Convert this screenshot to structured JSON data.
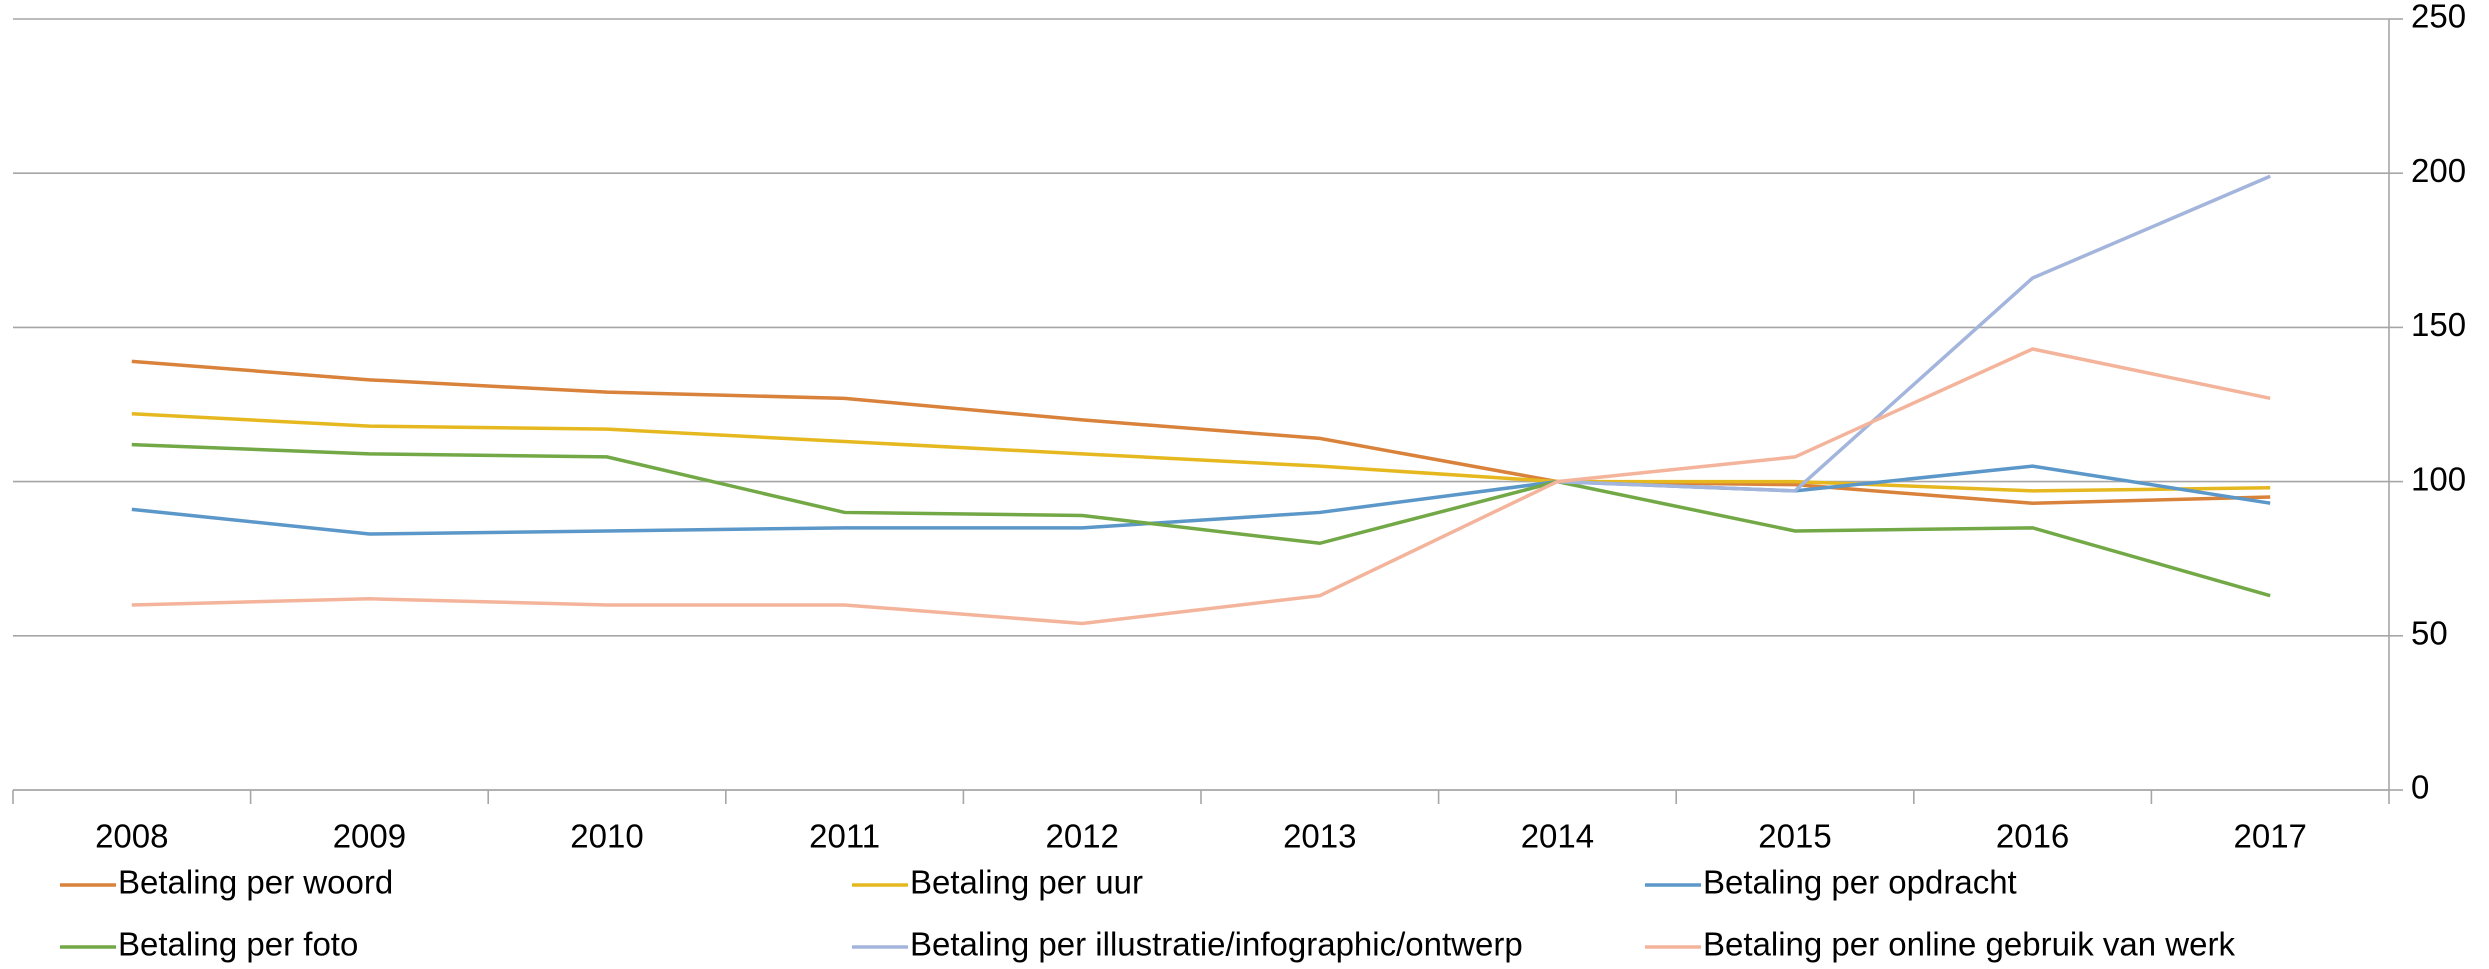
{
  "chart_data": {
    "type": "line",
    "categories": [
      "2008",
      "2009",
      "2010",
      "2011",
      "2012",
      "2013",
      "2014",
      "2015",
      "2016",
      "2017"
    ],
    "series": [
      {
        "name": "Betaling per woord",
        "color": "#d9823b",
        "values": [
          139,
          133,
          129,
          127,
          120,
          114,
          100,
          99,
          93,
          95
        ]
      },
      {
        "name": "Betaling per uur",
        "color": "#e6b820",
        "values": [
          122,
          118,
          117,
          113,
          109,
          105,
          100,
          100,
          97,
          98
        ]
      },
      {
        "name": "Betaling per opdracht",
        "color": "#5b97c8",
        "values": [
          91,
          83,
          84,
          85,
          85,
          90,
          100,
          97,
          105,
          93
        ]
      },
      {
        "name": "Betaling per foto",
        "color": "#72a846",
        "values": [
          112,
          109,
          108,
          90,
          89,
          80,
          100,
          84,
          85,
          63
        ]
      },
      {
        "name": "Betaling per illustratie/infographic/ontwerp",
        "color": "#a3b5dc",
        "values": [
          null,
          null,
          null,
          null,
          null,
          null,
          100,
          97,
          166,
          199
        ]
      },
      {
        "name": "Betaling per online gebruik van werk",
        "color": "#f3b49b",
        "values": [
          60,
          62,
          60,
          60,
          54,
          63,
          100,
          108,
          143,
          127
        ]
      }
    ],
    "ylim": [
      0,
      250
    ],
    "yticks": [
      0,
      50,
      100,
      150,
      200,
      250
    ],
    "grid": true,
    "legend": "bottom"
  }
}
